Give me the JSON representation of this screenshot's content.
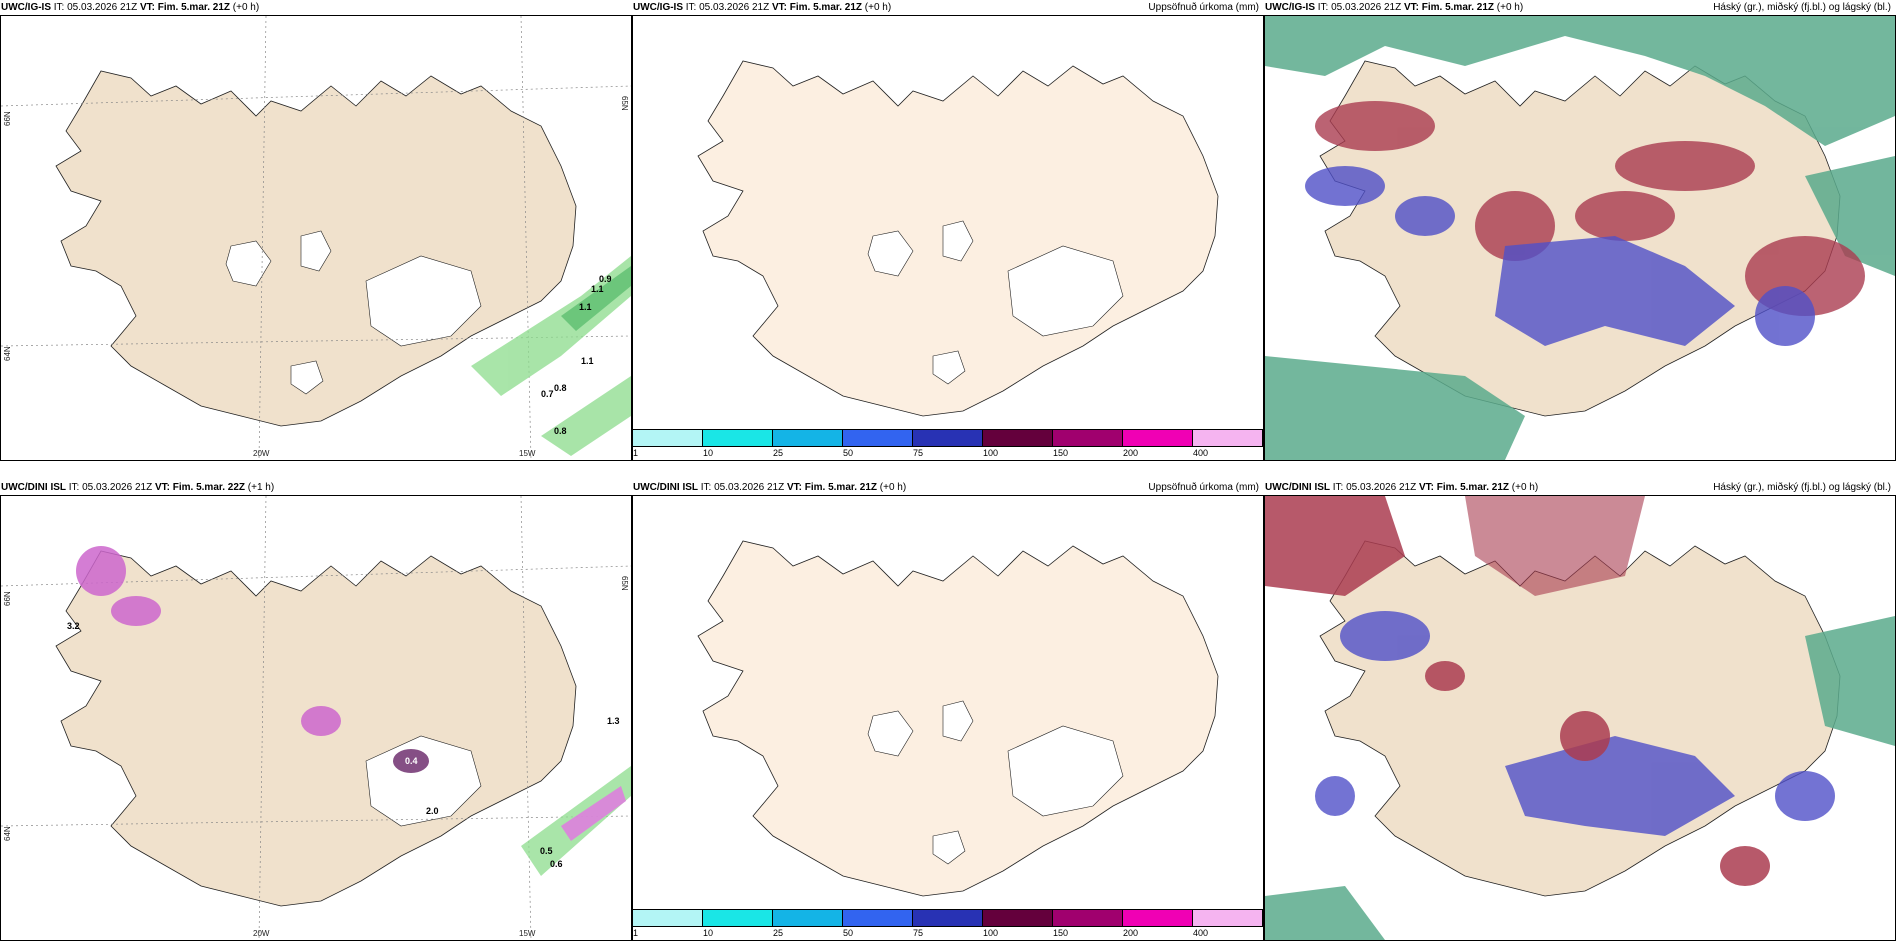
{
  "panels": [
    {
      "model": "UWC/IG-IS",
      "it_label": "IT:",
      "it_value": "05.03.2026 21Z",
      "vt_label": "VT:",
      "vt_value": "Fim. 5.mar. 21Z",
      "lead": "(+0 h)",
      "right_title": "",
      "lat_labels": [
        "66N",
        "64N",
        "65N"
      ],
      "lon_labels": [
        "20W",
        "15W"
      ],
      "values": [
        "0.9",
        "1.1",
        "1.1",
        "1.1",
        "0.8",
        "0.7",
        "0.8"
      ]
    },
    {
      "model": "UWC/IG-IS",
      "it_label": "IT:",
      "it_value": "05.03.2026 21Z",
      "vt_label": "VT:",
      "vt_value": "Fim. 5.mar. 21Z",
      "lead": "(+0 h)",
      "right_title": "Uppsöfnuð úrkoma (mm)"
    },
    {
      "model": "UWC/IG-IS",
      "it_label": "IT:",
      "it_value": "05.03.2026 21Z",
      "vt_label": "VT:",
      "vt_value": "Fim. 5.mar. 21Z",
      "lead": "(+0 h)",
      "right_title": "Háský (gr.), miðský (fj.bl.) og lágský (bl.)"
    },
    {
      "model": "UWC/DINI ISL",
      "it_label": "IT:",
      "it_value": "05.03.2026 21Z",
      "vt_label": "VT:",
      "vt_value": "Fim. 5.mar. 22Z",
      "lead": "(+1 h)",
      "right_title": "",
      "lat_labels": [
        "66N",
        "64N",
        "65N"
      ],
      "lon_labels": [
        "20W",
        "15W"
      ],
      "values": [
        "3.2",
        "0.4",
        "2.0",
        "0.5",
        "0.6",
        "1.3"
      ]
    },
    {
      "model": "UWC/DINI ISL",
      "it_label": "IT:",
      "it_value": "05.03.2026 21Z",
      "vt_label": "VT:",
      "vt_value": "Fim. 5.mar. 21Z",
      "lead": "(+0 h)",
      "right_title": "Uppsöfnuð úrkoma (mm)"
    },
    {
      "model": "UWC/DINI ISL",
      "it_label": "IT:",
      "it_value": "05.03.2026 21Z",
      "vt_label": "VT:",
      "vt_value": "Fim. 5.mar. 21Z",
      "lead": "(+0 h)",
      "right_title": "Háský (gr.), miðský (fj.bl.) og lágský (bl.)"
    }
  ],
  "colorbar": {
    "labels": [
      "1",
      "10",
      "25",
      "50",
      "75",
      "100",
      "150",
      "200",
      "400"
    ],
    "colors": [
      "#b3f5f5",
      "#1ae6e6",
      "#14b4e6",
      "#3264f0",
      "#2832b4",
      "#64003c",
      "#a0006e",
      "#f000b4",
      "#f5b4f0"
    ]
  },
  "colors": {
    "land": "#f0e1cc",
    "land_plain": "#fcefe1",
    "precip_green": "#8cdc8c",
    "high_cloud": "#5aaa8c",
    "mid_cloud": "#aa3c50",
    "low_cloud": "#5050c8"
  }
}
